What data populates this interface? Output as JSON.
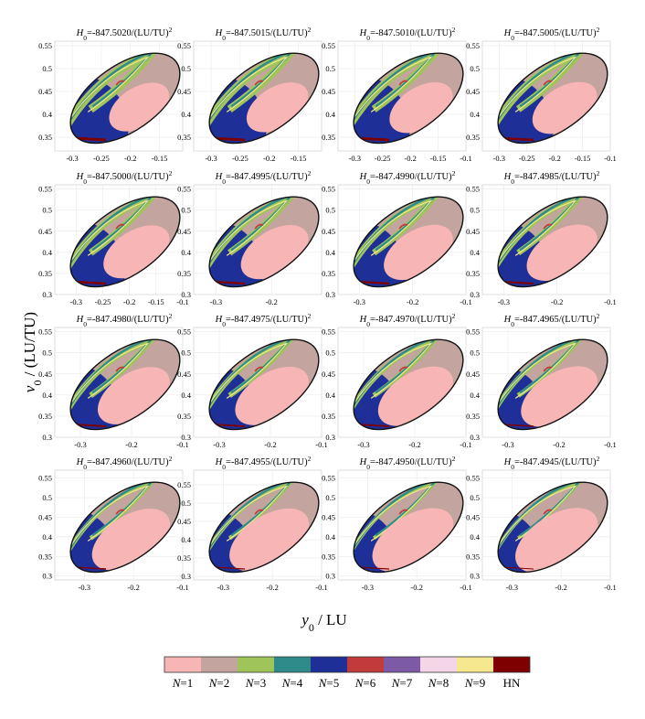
{
  "chart_data": {
    "type": "heatmap",
    "xlabel": "y0 / LU",
    "xlabel_parts": {
      "var": "y",
      "sub": "0",
      "unit": " / LU"
    },
    "ylabel": "v0 / (LU/TU)",
    "ylabel_parts": {
      "var": "v",
      "sub": "0",
      "unit": " / (LU/TU)"
    },
    "grid": true,
    "legend": {
      "placement": "bottom",
      "entries": [
        {
          "label": "N=1",
          "var": "N",
          "eq": "=1",
          "color": "#f7b6b5"
        },
        {
          "label": "N=2",
          "var": "N",
          "eq": "=2",
          "color": "#c4a49e"
        },
        {
          "label": "N=3",
          "var": "N",
          "eq": "=3",
          "color": "#9fc45a"
        },
        {
          "label": "N=4",
          "var": "N",
          "eq": "=4",
          "color": "#2f8a8a"
        },
        {
          "label": "N=5",
          "var": "N",
          "eq": "=5",
          "color": "#1f2f98"
        },
        {
          "label": "N=6",
          "var": "N",
          "eq": "=6",
          "color": "#c23b3b"
        },
        {
          "label": "N=7",
          "var": "N",
          "eq": "=7",
          "color": "#7d5aa6"
        },
        {
          "label": "N=8",
          "var": "N",
          "eq": "=8",
          "color": "#f3d6e8"
        },
        {
          "label": "N=9",
          "var": "N",
          "eq": "=9",
          "color": "#f5e88f"
        },
        {
          "label": "HN",
          "var": "",
          "eq": "HN",
          "color": "#7f0000"
        }
      ]
    },
    "panels": [
      {
        "title_value": "=-847.5020/(LU/TU)",
        "xlim": [
          -0.33,
          -0.11
        ],
        "ylim": [
          0.32,
          0.56
        ],
        "xticks": [
          "-0.3",
          "-0.25",
          "-0.2",
          "-0.15"
        ],
        "yticks": [
          "0.35",
          "0.4",
          "0.45",
          "0.5",
          "0.55"
        ]
      },
      {
        "title_value": "=-847.5015/(LU/TU)",
        "xlim": [
          -0.33,
          -0.11
        ],
        "ylim": [
          0.32,
          0.56
        ],
        "xticks": [
          "-0.3",
          "-0.25",
          "-0.2",
          "-0.15"
        ],
        "yticks": [
          "0.35",
          "0.4",
          "0.45",
          "0.5",
          "0.55"
        ]
      },
      {
        "title_value": "=-847.5010/(LU/TU)",
        "xlim": [
          -0.33,
          -0.1
        ],
        "ylim": [
          0.32,
          0.56
        ],
        "xticks": [
          "-0.3",
          "-0.25",
          "-0.2",
          "-0.15",
          "-0.1"
        ],
        "yticks": [
          "0.35",
          "0.4",
          "0.45",
          "0.5",
          "0.55"
        ]
      },
      {
        "title_value": "=-847.5005/(LU/TU)",
        "xlim": [
          -0.33,
          -0.1
        ],
        "ylim": [
          0.32,
          0.56
        ],
        "xticks": [
          "-0.3",
          "-0.25",
          "-0.2",
          "-0.15",
          "-0.1"
        ],
        "yticks": [
          "0.35",
          "0.4",
          "0.45",
          "0.5",
          "0.55"
        ]
      },
      {
        "title_value": "=-847.5000/(LU/TU)",
        "xlim": [
          -0.34,
          -0.1
        ],
        "ylim": [
          0.3,
          0.56
        ],
        "xticks": [
          "-0.3",
          "-0.25",
          "-0.2",
          "-0.15",
          "-0.1"
        ],
        "yticks": [
          "0.3",
          "0.35",
          "0.4",
          "0.45",
          "0.5",
          "0.55"
        ]
      },
      {
        "title_value": "=-847.4995/(LU/TU)",
        "xlim": [
          -0.34,
          -0.11
        ],
        "ylim": [
          0.3,
          0.56
        ],
        "xticks": [
          "-0.3",
          "-0.2"
        ],
        "yticks": [
          "0.3",
          "0.35",
          "0.4",
          "0.45",
          "0.5",
          "0.55"
        ]
      },
      {
        "title_value": "=-847.4990/(LU/TU)",
        "xlim": [
          -0.34,
          -0.1
        ],
        "ylim": [
          0.3,
          0.56
        ],
        "xticks": [
          "-0.3",
          "-0.2",
          "-0.1"
        ],
        "yticks": [
          "0.3",
          "0.35",
          "0.4",
          "0.45",
          "0.5",
          "0.55"
        ]
      },
      {
        "title_value": "=-847.4985/(LU/TU)",
        "xlim": [
          -0.34,
          -0.1
        ],
        "ylim": [
          0.3,
          0.56
        ],
        "xticks": [
          "-0.3",
          "-0.2",
          "-0.1"
        ],
        "yticks": [
          "0.3",
          "0.35",
          "0.4",
          "0.45",
          "0.5",
          "0.55"
        ]
      },
      {
        "title_value": "=-847.4980/(LU/TU)",
        "xlim": [
          -0.35,
          -0.1
        ],
        "ylim": [
          0.3,
          0.56
        ],
        "xticks": [
          "-0.3",
          "-0.2",
          "-0.1"
        ],
        "yticks": [
          "0.3",
          "0.35",
          "0.4",
          "0.45",
          "0.5",
          "0.55"
        ]
      },
      {
        "title_value": "=-847.4975/(LU/TU)",
        "xlim": [
          -0.35,
          -0.1
        ],
        "ylim": [
          0.3,
          0.56
        ],
        "xticks": [
          "-0.3",
          "-0.2",
          "-0.1"
        ],
        "yticks": [
          "0.3",
          "0.35",
          "0.4",
          "0.45",
          "0.5",
          "0.55"
        ]
      },
      {
        "title_value": "=-847.4970/(LU/TU)",
        "xlim": [
          -0.35,
          -0.1
        ],
        "ylim": [
          0.3,
          0.56
        ],
        "xticks": [
          "-0.3",
          "-0.2",
          "-0.1"
        ],
        "yticks": [
          "0.3",
          "0.35",
          "0.4",
          "0.45",
          "0.5",
          "0.55"
        ]
      },
      {
        "title_value": "=-847.4965/(LU/TU)",
        "xlim": [
          -0.35,
          -0.1
        ],
        "ylim": [
          0.3,
          0.56
        ],
        "xticks": [
          "-0.3",
          "-0.2",
          "-0.1"
        ],
        "yticks": [
          "0.3",
          "0.35",
          "0.4",
          "0.45",
          "0.5",
          "0.55"
        ]
      },
      {
        "title_value": "=-847.4960/(LU/TU)",
        "xlim": [
          -0.36,
          -0.1
        ],
        "ylim": [
          0.29,
          0.57
        ],
        "xticks": [
          "-0.3",
          "-0.2",
          "-0.1"
        ],
        "yticks": [
          "0.3",
          "0.35",
          "0.4",
          "0.45",
          "0.5",
          "0.55"
        ]
      },
      {
        "title_value": "=-847.4955/(LU/TU)",
        "xlim": [
          -0.36,
          -0.1
        ],
        "ylim": [
          0.29,
          0.59
        ],
        "xticks": [
          "-0.3",
          "-0.2",
          "-0.1"
        ],
        "yticks": [
          "0.3",
          "0.35",
          "0.4",
          "0.45",
          "0.5",
          "0.55"
        ]
      },
      {
        "title_value": "=-847.4950/(LU/TU)",
        "xlim": [
          -0.36,
          -0.1
        ],
        "ylim": [
          0.29,
          0.57
        ],
        "xticks": [
          "-0.3",
          "-0.2",
          "-0.1"
        ],
        "yticks": [
          "0.3",
          "0.35",
          "0.4",
          "0.45",
          "0.5",
          "0.55"
        ]
      },
      {
        "title_value": "=-847.4945/(LU/TU)",
        "xlim": [
          -0.36,
          -0.1
        ],
        "ylim": [
          0.29,
          0.57
        ],
        "xticks": [
          "-0.3",
          "-0.2",
          "-0.1"
        ],
        "yticks": [
          "0.3",
          "0.35",
          "0.4",
          "0.45",
          "0.5",
          "0.55"
        ]
      }
    ],
    "title_var": "H",
    "title_sub": "0",
    "title_sup": "2"
  }
}
